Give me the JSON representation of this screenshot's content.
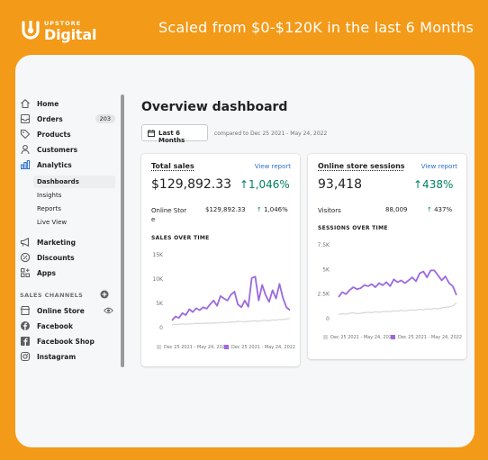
{
  "brand": {
    "top": "UPSTORE",
    "main": "Digital"
  },
  "tagline": "Scaled from $0-$120K in the last 6 Months",
  "sidebar": {
    "items": [
      {
        "label": "Home",
        "icon": "home-icon"
      },
      {
        "label": "Orders",
        "icon": "orders-icon",
        "badge": "203"
      },
      {
        "label": "Products",
        "icon": "tag-icon"
      },
      {
        "label": "Customers",
        "icon": "person-icon"
      },
      {
        "label": "Analytics",
        "icon": "bar-chart-icon"
      }
    ],
    "analytics_sub": [
      "Dashboards",
      "Insights",
      "Reports",
      "Live View"
    ],
    "items2": [
      {
        "label": "Marketing",
        "icon": "megaphone-icon"
      },
      {
        "label": "Discounts",
        "icon": "discount-icon"
      },
      {
        "label": "Apps",
        "icon": "apps-icon"
      }
    ],
    "section_label": "SALES CHANNELS",
    "channels": [
      {
        "label": "Online Store",
        "icon": "store-icon"
      },
      {
        "label": "Facebook",
        "icon": "facebook-icon"
      },
      {
        "label": "Facebook Shop",
        "icon": "facebook-square-icon"
      },
      {
        "label": "Instagram",
        "icon": "instagram-icon"
      }
    ]
  },
  "main": {
    "title": "Overview dashboard",
    "date_button": "Last 6 Months",
    "compare_text": "compared to Dec 25 2021 - May 24, 2022"
  },
  "sales_panel": {
    "title": "Total sales",
    "link": "View report",
    "value": "$129,892.33",
    "change": "↑1,046%",
    "row_label_1": "Online Stor",
    "row_label_2": "e",
    "row_value": "$129,892.33",
    "row_change": "1,046%",
    "section": "SALES OVER TIME",
    "legend_prev": "Dec 25 2021 - May 24, 2022",
    "legend_curr": "Dec 25 2021 - May 24, 2022"
  },
  "sessions_panel": {
    "title": "Online store sessions",
    "link": "View report",
    "value": "93,418",
    "change": "↑438%",
    "row_label": "Visitors",
    "row_value": "88,009",
    "row_change": "437%",
    "section": "SESSIONS OVER TIME",
    "legend_prev": "Dec 25 2021 - May 24, 2022",
    "legend_curr": "Dec 25 2021 - May 24, 2022"
  },
  "colors": {
    "orange": "#F39A18",
    "purple": "#9C6ADE",
    "green": "#008060",
    "link": "#2C6ECB"
  },
  "chart_data": [
    {
      "type": "line",
      "title": "SALES OVER TIME",
      "ylim": [
        0,
        15000
      ],
      "yticks": [
        "15K",
        "10K",
        "5K",
        "0"
      ],
      "series": [
        {
          "name": "Dec 25 2021 - May 24, 2022",
          "values": [
            1500,
            2300,
            2000,
            3000,
            2600,
            3800,
            3200,
            4000,
            3600,
            4200,
            3900,
            4800,
            5600,
            4500,
            6500,
            6000,
            5600,
            6800,
            7400,
            4800,
            4200,
            5600,
            4300,
            10200,
            10500,
            5600,
            8800,
            6700,
            5300,
            7700,
            6000,
            9000,
            6100,
            4200,
            3600
          ]
        },
        {
          "name": "Dec 25 2021 - May 24, 2022",
          "values": [
            600,
            700,
            650,
            800,
            700,
            750,
            800,
            900,
            850,
            900,
            950,
            900,
            1000,
            950,
            1100,
            1050,
            1100,
            1200,
            1150,
            1300,
            1250,
            1200,
            1300,
            1350,
            1400,
            1300,
            1450,
            1500,
            1400,
            1600,
            1550,
            1700,
            1650,
            1800,
            1900
          ]
        }
      ]
    },
    {
      "type": "line",
      "title": "SESSIONS OVER TIME",
      "ylim": [
        0,
        7500
      ],
      "yticks": [
        "7.5K",
        "5K",
        "2.5K",
        "0"
      ],
      "series": [
        {
          "name": "Dec 25 2021 - May 24, 2022",
          "values": [
            2200,
            2700,
            2500,
            2900,
            3200,
            3000,
            3100,
            3400,
            3300,
            3500,
            3200,
            3600,
            3400,
            3700,
            3300,
            4000,
            3700,
            3900,
            3600,
            3900,
            4200,
            3800,
            4600,
            4800,
            4200,
            4900,
            4900,
            4400,
            3900,
            4300,
            3600,
            3300,
            2400
          ]
        },
        {
          "name": "Dec 25 2021 - May 24, 2022",
          "values": [
            400,
            500,
            450,
            550,
            600,
            500,
            550,
            600,
            650,
            600,
            700,
            650,
            700,
            750,
            700,
            800,
            750,
            850,
            800,
            850,
            900,
            850,
            950,
            900,
            1000,
            950,
            1050,
            1000,
            1100,
            1150,
            1200,
            1300,
            1600
          ]
        }
      ]
    }
  ]
}
